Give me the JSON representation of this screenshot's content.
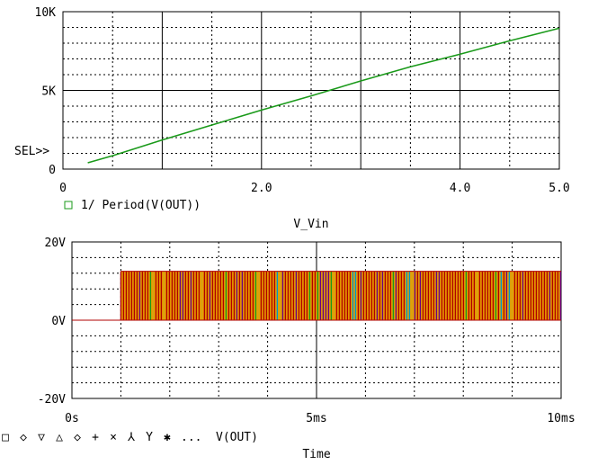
{
  "chart_data": [
    {
      "type": "line",
      "xlabel": "V_Vin",
      "xlim": [
        0,
        5.0
      ],
      "ylim": [
        0,
        10000
      ],
      "x_ticks": [
        "0",
        "2.0",
        "4.0",
        "5.0"
      ],
      "x_tick_values": [
        0,
        2.0,
        4.0,
        5.0
      ],
      "y_ticks": [
        "0",
        "5K",
        "10K"
      ],
      "y_tick_values": [
        0,
        5000,
        10000
      ],
      "selector_label": "SEL>>",
      "grid": true,
      "series": [
        {
          "name": "1/ Period(V(OUT))",
          "color": "#1a9a1a",
          "marker": "□",
          "x": [
            0.25,
            0.5,
            1.0,
            1.5,
            2.0,
            2.5,
            3.0,
            3.5,
            4.0,
            4.5,
            5.0
          ],
          "y": [
            400,
            850,
            1850,
            2800,
            3750,
            4650,
            5600,
            6500,
            7300,
            8150,
            8950
          ]
        }
      ]
    },
    {
      "type": "line",
      "xlabel": "Time",
      "xlim": [
        0,
        10
      ],
      "x_unit": "ms",
      "ylim": [
        -20,
        20
      ],
      "x_ticks": [
        "0s",
        "5ms",
        "10ms"
      ],
      "x_tick_values": [
        0,
        5,
        10
      ],
      "y_ticks": [
        "-20V",
        "0V",
        "20V"
      ],
      "y_tick_values": [
        -20,
        0,
        20
      ],
      "grid": true,
      "signal": {
        "start_ms": 1.0,
        "end_ms": 10,
        "low_v": 0,
        "high_v": 12.5
      },
      "legend_markers": [
        "□",
        "◇",
        "▽",
        "△",
        "◇",
        "+",
        "×",
        "⅄",
        "Y",
        "✱"
      ],
      "legend_ellipsis": "...",
      "series": [
        {
          "name": "V(OUT)",
          "colors": [
            "#b00000",
            "#d4a017",
            "#6a0080",
            "#1a9a1a",
            "#0096c8",
            "#e07000"
          ]
        }
      ]
    }
  ]
}
